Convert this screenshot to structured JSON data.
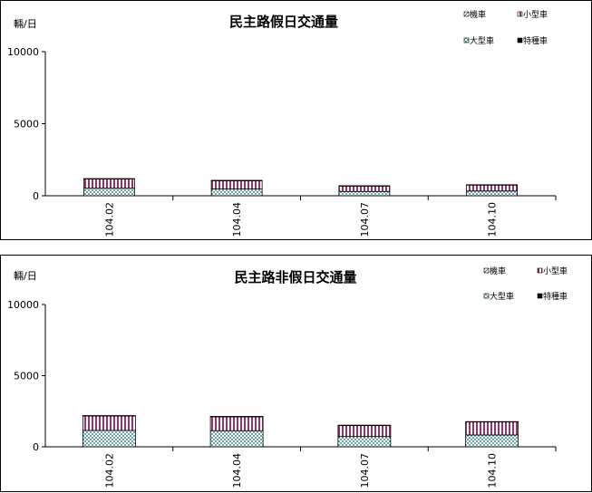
{
  "charts": [
    {
      "chart_data": {
        "type": "bar",
        "stacked": true,
        "title": "民主路假日交通量",
        "ylabel": "輛/日",
        "xlabel": "",
        "ylim": [
          0,
          10000
        ],
        "yticks": [
          0,
          5000,
          10000
        ],
        "categories": [
          "104.02",
          "104.04",
          "104.07",
          "104.10"
        ],
        "grid": false,
        "legend_position": "top-right",
        "series": [
          {
            "name": "機車",
            "values": [
              0,
              0,
              0,
              0
            ],
            "color": "#ffffff",
            "pattern": "hatch"
          },
          {
            "name": "小型車",
            "values": [
              650,
              580,
              380,
              420
            ],
            "color": "#993366",
            "pattern": "vertical-stripes"
          },
          {
            "name": "大型車",
            "values": [
              520,
              470,
              300,
              330
            ],
            "color": "#006666",
            "pattern": "dots"
          },
          {
            "name": "特種車",
            "values": [
              20,
              20,
              15,
              15
            ],
            "color": "#000000",
            "pattern": "solid"
          }
        ]
      }
    },
    {
      "chart_data": {
        "type": "bar",
        "stacked": true,
        "title": "民主路非假日交通量",
        "ylabel": "輛/日",
        "xlabel": "",
        "ylim": [
          0,
          10000
        ],
        "yticks": [
          0,
          5000,
          10000
        ],
        "categories": [
          "104.02",
          "104.04",
          "104.07",
          "104.10"
        ],
        "grid": false,
        "legend_position": "top-right",
        "series": [
          {
            "name": "機車",
            "values": [
              0,
              0,
              0,
              0
            ],
            "color": "#ffffff",
            "pattern": "hatch"
          },
          {
            "name": "小型車",
            "values": [
              1020,
              980,
              780,
              920
            ],
            "color": "#993366",
            "pattern": "vertical-stripes"
          },
          {
            "name": "大型車",
            "values": [
              1150,
              1130,
              720,
              830
            ],
            "color": "#006666",
            "pattern": "dots"
          },
          {
            "name": "特種車",
            "values": [
              25,
              25,
              20,
              20
            ],
            "color": "#000000",
            "pattern": "solid"
          }
        ]
      }
    }
  ]
}
